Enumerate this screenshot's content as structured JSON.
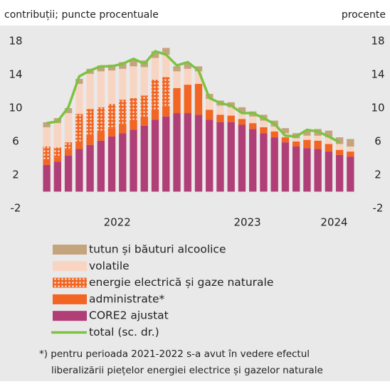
{
  "chart_data": {
    "type": "stacked_bar_line",
    "ylabel": "contribuții; puncte procentuale",
    "y2label": "procente",
    "categories": [
      null,
      null,
      null,
      null,
      null,
      null,
      "2022",
      null,
      null,
      null,
      null,
      null,
      null,
      null,
      null,
      null,
      null,
      null,
      "2023",
      null,
      null,
      null,
      null,
      null,
      null,
      null,
      "2024",
      null,
      null
    ],
    "ylim": [
      -2,
      18
    ],
    "yticks": [
      -2,
      2,
      6,
      10,
      14,
      18
    ],
    "y2lim": [
      -2,
      18
    ],
    "y2ticks": [
      -2,
      2,
      6,
      10,
      14,
      18
    ],
    "grid": false,
    "series": [
      {
        "name": "CORE2 ajustat",
        "color": "#b03f78",
        "values": [
          3.2,
          3.6,
          4.3,
          5.1,
          5.6,
          6.1,
          6.6,
          7.0,
          7.4,
          7.9,
          8.6,
          9.0,
          9.4,
          9.4,
          9.2,
          8.6,
          8.3,
          8.3,
          8.0,
          7.5,
          7.0,
          6.5,
          5.9,
          5.4,
          5.2,
          5.1,
          4.8,
          4.4,
          4.2
        ]
      },
      {
        "name": "administrate*",
        "color": "#f26522",
        "values": [
          0.5,
          0.5,
          0.7,
          0.9,
          1.2,
          1.0,
          1.0,
          1.1,
          1.2,
          1.1,
          1.1,
          1.2,
          3.0,
          3.4,
          3.7,
          1.2,
          0.9,
          0.8,
          0.7,
          0.7,
          0.7,
          0.7,
          0.6,
          0.6,
          1.0,
          1.0,
          0.9,
          0.6,
          0.6
        ]
      },
      {
        "name": "energie electrică și gaze naturale",
        "color": "#f26522",
        "pattern": "dots",
        "values": [
          1.7,
          1.2,
          0.9,
          3.3,
          3.1,
          3.0,
          2.9,
          2.9,
          2.6,
          2.5,
          3.7,
          3.5,
          0,
          0,
          0,
          0,
          0,
          0,
          0,
          0,
          0,
          0,
          0,
          0,
          0,
          0,
          0,
          0,
          0
        ]
      },
      {
        "name": "volatile",
        "color": "#f8d5c2",
        "values": [
          2.3,
          2.9,
          3.5,
          3.6,
          4.2,
          4.3,
          4.0,
          3.7,
          3.8,
          3.4,
          2.6,
          2.7,
          2.0,
          1.9,
          1.5,
          1.3,
          1.1,
          1.0,
          0.8,
          0.8,
          0.8,
          0.6,
          0.5,
          0.4,
          0.5,
          0.6,
          0.8,
          0.7,
          0.6
        ]
      },
      {
        "name": "tutun și băuturi alcoolice",
        "color": "#c4a47c",
        "values": [
          0.6,
          0.6,
          0.6,
          0.6,
          0.6,
          0.7,
          0.7,
          0.8,
          0.8,
          0.8,
          0.8,
          0.8,
          0.6,
          0.7,
          0.6,
          0.6,
          0.6,
          0.6,
          0.6,
          0.6,
          0.7,
          0.7,
          0.6,
          0.6,
          0.6,
          0.8,
          0.8,
          0.8,
          0.9
        ]
      },
      {
        "name": "total (sc. dr.)",
        "color": "#7dc242",
        "kind": "line",
        "axis": "y2",
        "values": [
          8.2,
          8.4,
          10.1,
          13.8,
          14.5,
          15.0,
          15.0,
          15.3,
          15.9,
          15.3,
          16.8,
          16.4,
          15.1,
          15.5,
          14.5,
          11.2,
          10.6,
          10.3,
          9.4,
          9.4,
          8.8,
          8.1,
          6.7,
          6.6,
          7.4,
          7.2,
          6.6,
          5.9,
          null
        ]
      }
    ],
    "legend_order": [
      4,
      3,
      2,
      1,
      0,
      5
    ],
    "footnote": [
      "*) pentru perioada 2021-2022 s-a avut în vedere efectul",
      "liberalizării piețelor energiei electrice și gazelor naturale"
    ]
  }
}
